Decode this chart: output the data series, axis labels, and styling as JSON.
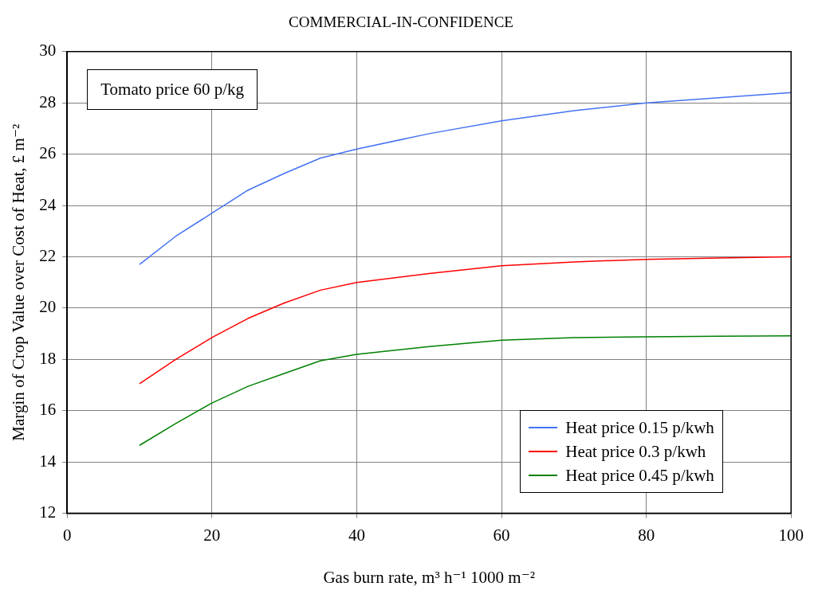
{
  "chart_data": {
    "type": "line",
    "title": "COMMERCIAL-IN-CONFIDENCE",
    "xlabel": "Gas burn rate, m³ h⁻¹ 1000 m⁻²",
    "ylabel": "Margin of Crop Value over Cost of Heat, £ m⁻²",
    "annotations": [
      "Tomato price 60 p/kg"
    ],
    "x": [
      10,
      15,
      20,
      25,
      30,
      35,
      40,
      50,
      60,
      70,
      80,
      90,
      100
    ],
    "series": [
      {
        "name": "Heat price 0.15 p/kwh",
        "color": "#4472f4",
        "values": [
          21.7,
          22.8,
          23.7,
          24.6,
          25.25,
          25.85,
          26.2,
          26.8,
          27.3,
          27.7,
          28.0,
          28.2,
          28.4
        ]
      },
      {
        "name": "Heat price 0.3 p/kwh",
        "color": "#ff0000",
        "values": [
          17.05,
          18.0,
          18.85,
          19.6,
          20.2,
          20.7,
          21.0,
          21.35,
          21.65,
          21.8,
          21.9,
          21.95,
          22.0
        ]
      },
      {
        "name": "Heat price 0.45 p/kwh",
        "color": "#008000",
        "values": [
          14.65,
          15.5,
          16.3,
          16.95,
          17.45,
          17.95,
          18.2,
          18.5,
          18.75,
          18.85,
          18.88,
          18.9,
          18.92
        ]
      }
    ],
    "xlim": [
      0,
      100
    ],
    "xticks": [
      0,
      20,
      40,
      60,
      80,
      100
    ],
    "ylim": [
      12,
      30
    ],
    "yticks": [
      12,
      14,
      16,
      18,
      20,
      22,
      24,
      26,
      28,
      30
    ],
    "grid": true,
    "legend": "bottom right",
    "marker": "none",
    "line_style": "solid"
  }
}
